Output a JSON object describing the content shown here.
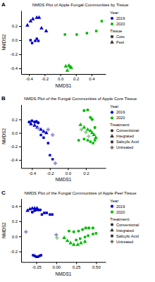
{
  "chart_data": [
    {
      "type": "scatter",
      "title": "NMDS Plot of Apple Fungal Communities by Tissue",
      "annotations": [
        "A"
      ],
      "x_label": "NMDS1",
      "y_label": "NMDS2",
      "xlim": [
        -0.5,
        0.58
      ],
      "ylim": [
        -0.48,
        0.42
      ],
      "xticks": [
        -0.4,
        -0.2,
        {
          "value": 0.0,
          "label": "0.0"
        },
        0.2,
        0.4
      ],
      "yticks": [
        -0.4,
        -0.2,
        {
          "value": 0.0,
          "label": "0.0"
        },
        0.2
      ],
      "grid": false,
      "legend": "right",
      "legend_groups": [
        {
          "title": "Year",
          "entries": [
            {
              "name": "2019",
              "color": "#0000CC",
              "marker": "circle"
            },
            {
              "name": "2020",
              "color": "#00BB00",
              "marker": "circle"
            }
          ]
        },
        {
          "title": "Tissue",
          "entries": [
            {
              "name": "Core",
              "color": "#333333",
              "marker": "square"
            },
            {
              "name": "Peel",
              "color": "#333333",
              "marker": "triangle"
            }
          ]
        }
      ],
      "series": [
        {
          "color": "#0000CC",
          "marker": "square",
          "x": [
            -0.38,
            -0.36,
            -0.32,
            -0.3,
            -0.28
          ],
          "values": [
            0.0,
            -0.04,
            -0.01,
            0.02,
            -0.01
          ]
        },
        {
          "color": "#0000CC",
          "marker": "triangle",
          "x": [
            -0.42,
            -0.38,
            -0.35,
            -0.3,
            -0.27,
            -0.24,
            -0.18
          ],
          "values": [
            0.21,
            0.27,
            0.3,
            0.32,
            0.32,
            0.17,
            0.13
          ]
        },
        {
          "color": "#00BB00",
          "marker": "square",
          "x": [
            0.06,
            0.21,
            0.34,
            0.46,
            0.53
          ],
          "values": [
            0.08,
            0.08,
            0.1,
            0.13,
            0.27
          ]
        },
        {
          "color": "#00BB00",
          "marker": "triangle",
          "x": [
            0.07,
            0.09,
            0.11,
            0.13,
            0.14
          ],
          "values": [
            -0.37,
            -0.43,
            -0.36,
            -0.38,
            -0.39
          ]
        }
      ]
    },
    {
      "type": "scatter",
      "title": "NMDS Plot of the Fungal Communities of Apple Core Tissue",
      "annotations": [
        "B"
      ],
      "x_label": "NMDS1",
      "y_label": "NMDS2",
      "xlim": [
        -0.52,
        0.42
      ],
      "ylim": [
        -0.52,
        0.42
      ],
      "xticks": [
        -0.4,
        -0.2,
        {
          "value": 0.0,
          "label": "0.0"
        },
        0.2
      ],
      "yticks": [
        -0.4,
        -0.2,
        {
          "value": 0.0,
          "label": "0.0"
        },
        0.2
      ],
      "grid": false,
      "legend": "right",
      "legend_groups": [
        {
          "title": "Year",
          "entries": [
            {
              "name": "2019",
              "color": "#0000CC",
              "marker": "circle"
            },
            {
              "name": "2020",
              "color": "#00BB00",
              "marker": "circle"
            }
          ]
        },
        {
          "title": "Treatment:",
          "entries": [
            {
              "name": "Conventional",
              "color": "#333333",
              "marker": "circle"
            },
            {
              "name": "Integrated",
              "color": "#333333",
              "marker": "triangle"
            },
            {
              "name": "Salicylic Acid",
              "color": "#333333",
              "marker": "square"
            },
            {
              "name": "Untreated",
              "color": "#666666",
              "marker": "plus"
            }
          ]
        }
      ],
      "series": [
        {
          "color": "#0000CC",
          "marker": "circle",
          "x": [
            -0.43,
            -0.4,
            -0.37,
            -0.35,
            -0.33
          ],
          "values": [
            0.16,
            0.18,
            0.16,
            0.17,
            0.15
          ]
        },
        {
          "color": "#0000CC",
          "marker": "triangle",
          "x": [
            -0.41,
            -0.37,
            -0.34,
            -0.3,
            -0.27,
            -0.24
          ],
          "values": [
            0.13,
            0.11,
            0.08,
            0.05,
            0.02,
            0.0
          ]
        },
        {
          "color": "#0000CC",
          "marker": "square",
          "x": [
            -0.3,
            -0.27,
            -0.22,
            -0.2,
            -0.17
          ],
          "values": [
            -0.03,
            -0.07,
            -0.15,
            -0.33,
            -0.39
          ]
        },
        {
          "color": "#8888CC",
          "marker": "plus",
          "x": [
            -0.33,
            -0.22,
            -0.17,
            -0.14
          ],
          "values": [
            0.07,
            0.05,
            -0.03,
            -0.45
          ]
        },
        {
          "color": "#00BB00",
          "marker": "circle",
          "x": [
            0.18,
            0.22,
            0.25,
            0.27,
            0.3
          ],
          "values": [
            0.33,
            0.34,
            0.23,
            0.2,
            0.08
          ]
        },
        {
          "color": "#00BB00",
          "marker": "triangle",
          "x": [
            0.14,
            0.18,
            0.22,
            0.25,
            0.27,
            0.29,
            0.31
          ],
          "values": [
            0.12,
            0.08,
            0.05,
            0.03,
            0.0,
            -0.03,
            -0.07
          ]
        },
        {
          "color": "#00BB00",
          "marker": "square",
          "x": [
            0.12,
            0.18,
            0.22,
            0.25,
            0.28,
            0.3
          ],
          "values": [
            -0.11,
            -0.09,
            -0.11,
            -0.13,
            -0.15,
            -0.11
          ]
        },
        {
          "color": "#88CC88",
          "marker": "plus",
          "x": [
            0.15,
            0.2,
            0.23
          ],
          "values": [
            0.05,
            0.01,
            -0.05
          ]
        }
      ]
    },
    {
      "type": "scatter",
      "title": "NMDS Plot of the Fungal Communities of Apple Peel Tissue",
      "annotations": [
        "C"
      ],
      "x_label": "NMDS1",
      "y_label": "NMDS2",
      "xlim": [
        -0.44,
        0.62
      ],
      "ylim": [
        -0.34,
        0.5
      ],
      "xticks": [
        -0.25,
        {
          "value": 0.0,
          "label": "0.00"
        },
        0.25,
        {
          "value": 0.5,
          "label": "0.50"
        }
      ],
      "yticks": [
        -0.2,
        {
          "value": 0.0,
          "label": "0.0"
        },
        0.2,
        0.4
      ],
      "grid": false,
      "legend": "right",
      "legend_groups": [
        {
          "title": "Year",
          "entries": [
            {
              "name": "2019",
              "color": "#0000CC",
              "marker": "circle"
            },
            {
              "name": "2020",
              "color": "#00BB00",
              "marker": "circle"
            }
          ]
        },
        {
          "title": "Treatment:",
          "entries": [
            {
              "name": "Conventional",
              "color": "#333333",
              "marker": "circle"
            },
            {
              "name": "Integrated",
              "color": "#333333",
              "marker": "triangle"
            },
            {
              "name": "Salicylic Acid",
              "color": "#333333",
              "marker": "square"
            },
            {
              "name": "Untreated",
              "color": "#666666",
              "marker": "plus"
            }
          ]
        }
      ],
      "series": [
        {
          "color": "#0000CC",
          "marker": "circle",
          "x": [
            -0.3,
            -0.27,
            -0.24,
            -0.22,
            -0.2
          ],
          "values": [
            0.32,
            0.34,
            0.35,
            0.35,
            0.35
          ]
        },
        {
          "color": "#0000CC",
          "marker": "triangle",
          "x": [
            -0.36,
            -0.33,
            -0.3,
            -0.27,
            -0.24
          ],
          "values": [
            0.34,
            0.36,
            0.37,
            0.37,
            0.37
          ]
        },
        {
          "color": "#0000CC",
          "marker": "square",
          "x": [
            -0.18,
            -0.15,
            -0.12,
            -0.08,
            -0.05
          ],
          "values": [
            0.29,
            0.31,
            0.31,
            0.29,
            0.29
          ]
        },
        {
          "color": "#8888CC",
          "marker": "plus",
          "x": [
            -0.38,
            0.0
          ],
          "values": [
            0.06,
            0.02
          ]
        },
        {
          "color": "#0000CC",
          "marker": "square",
          "x": [
            -0.29,
            -0.27,
            -0.25,
            -0.23,
            -0.21,
            -0.19
          ],
          "values": [
            -0.25,
            -0.26,
            -0.27,
            -0.27,
            -0.26,
            -0.25
          ]
        },
        {
          "color": "#00BB00",
          "marker": "circle",
          "x": [
            0.16,
            0.22,
            0.28,
            0.33,
            0.37,
            0.41,
            0.46
          ],
          "values": [
            0.07,
            0.06,
            0.07,
            0.09,
            0.11,
            0.11,
            0.11
          ]
        },
        {
          "color": "#00BB00",
          "marker": "triangle",
          "x": [
            0.1,
            0.14,
            0.18,
            0.22,
            0.27,
            0.31,
            0.36
          ],
          "values": [
            -0.02,
            -0.06,
            -0.09,
            -0.11,
            -0.11,
            -0.09,
            -0.07
          ]
        },
        {
          "color": "#00BB00",
          "marker": "square",
          "x": [
            0.25,
            0.3,
            0.36,
            0.4,
            0.46,
            0.5
          ],
          "values": [
            -0.05,
            -0.03,
            -0.01,
            0.01,
            0.03,
            0.04
          ]
        },
        {
          "color": "#88CC88",
          "marker": "plus",
          "x": [
            0.01
          ],
          "values": [
            -0.02
          ]
        }
      ]
    }
  ]
}
